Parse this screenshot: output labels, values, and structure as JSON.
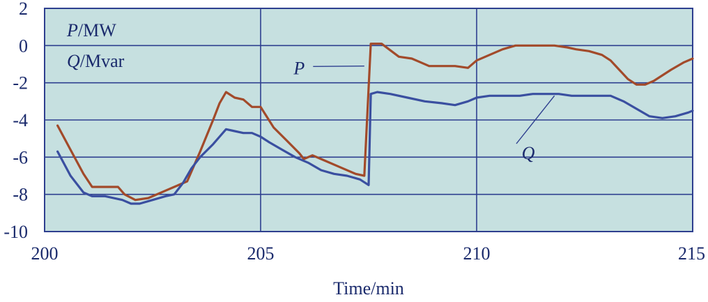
{
  "chart_data": {
    "type": "line",
    "xlabel": "Time/min",
    "ylabel": "",
    "xlim": [
      200,
      215
    ],
    "ylim": [
      -10,
      2
    ],
    "xticks": [
      200,
      205,
      210,
      215
    ],
    "yticks": [
      2,
      0,
      -2,
      -4,
      -6,
      -8,
      -10
    ],
    "grid": true,
    "legend_lines": [
      {
        "italic": "P",
        "unit": "/MW"
      },
      {
        "italic": "Q",
        "unit": "/Mvar"
      }
    ],
    "colors": {
      "plot_bg": "#c6e0e0",
      "grid": "#2e3f8f",
      "axis_text": "#1a2a6c"
    },
    "series": [
      {
        "name": "P",
        "color": "#a24a2a",
        "label_at": [
          206.15,
          -1.2
        ],
        "leader_to": [
          207.4,
          -1.1
        ],
        "x": [
          200.3,
          200.6,
          200.9,
          201.1,
          201.4,
          201.7,
          201.85,
          202.1,
          202.4,
          202.8,
          203.0,
          203.3,
          203.6,
          203.9,
          204.05,
          204.2,
          204.4,
          204.6,
          204.8,
          205.0,
          205.3,
          205.6,
          205.9,
          206.0,
          206.2,
          206.4,
          206.8,
          207.2,
          207.4,
          207.55,
          207.8,
          208.2,
          208.5,
          208.7,
          208.9,
          209.2,
          209.5,
          209.8,
          210.0,
          210.3,
          210.6,
          210.9,
          211.2,
          211.5,
          211.8,
          212.1,
          212.3,
          212.6,
          212.9,
          213.1,
          213.3,
          213.5,
          213.7,
          213.9,
          214.1,
          214.3,
          214.5,
          214.8,
          215.0
        ],
        "y": [
          -4.3,
          -5.6,
          -6.9,
          -7.6,
          -7.6,
          -7.6,
          -8.0,
          -8.3,
          -8.2,
          -7.8,
          -7.6,
          -7.3,
          -5.7,
          -4.0,
          -3.1,
          -2.5,
          -2.8,
          -2.9,
          -3.3,
          -3.3,
          -4.4,
          -5.1,
          -5.8,
          -6.1,
          -5.9,
          -6.1,
          -6.5,
          -6.9,
          -7.0,
          0.1,
          0.1,
          -0.6,
          -0.7,
          -0.9,
          -1.1,
          -1.1,
          -1.1,
          -1.2,
          -0.8,
          -0.5,
          -0.2,
          0.0,
          0.0,
          0.0,
          0.0,
          -0.1,
          -0.2,
          -0.3,
          -0.5,
          -0.8,
          -1.3,
          -1.8,
          -2.1,
          -2.1,
          -1.9,
          -1.6,
          -1.3,
          -0.9,
          -0.7
        ]
      },
      {
        "name": "Q",
        "color": "#3a4fa0",
        "label_at": [
          211.0,
          -5.5
        ],
        "leader_to": [
          211.8,
          -2.7
        ],
        "x": [
          200.3,
          200.6,
          200.9,
          201.1,
          201.4,
          201.8,
          202.0,
          202.2,
          202.5,
          202.8,
          203.0,
          203.2,
          203.4,
          203.6,
          203.9,
          204.05,
          204.2,
          204.4,
          204.6,
          204.8,
          205.0,
          205.2,
          205.5,
          205.8,
          206.1,
          206.4,
          206.7,
          207.0,
          207.3,
          207.5,
          207.55,
          207.7,
          208.0,
          208.4,
          208.8,
          209.2,
          209.5,
          209.8,
          210.0,
          210.3,
          210.6,
          211.0,
          211.3,
          211.6,
          211.9,
          212.2,
          212.5,
          212.8,
          213.1,
          213.4,
          213.7,
          214.0,
          214.3,
          214.6,
          214.9,
          215.0
        ],
        "y": [
          -5.7,
          -7.0,
          -7.9,
          -8.1,
          -8.1,
          -8.3,
          -8.5,
          -8.5,
          -8.3,
          -8.1,
          -8.0,
          -7.4,
          -6.6,
          -6.0,
          -5.3,
          -4.9,
          -4.5,
          -4.6,
          -4.7,
          -4.7,
          -4.9,
          -5.2,
          -5.6,
          -6.0,
          -6.3,
          -6.7,
          -6.9,
          -7.0,
          -7.2,
          -7.5,
          -2.6,
          -2.5,
          -2.6,
          -2.8,
          -3.0,
          -3.1,
          -3.2,
          -3.0,
          -2.8,
          -2.7,
          -2.7,
          -2.7,
          -2.6,
          -2.6,
          -2.6,
          -2.7,
          -2.7,
          -2.7,
          -2.7,
          -3.0,
          -3.4,
          -3.8,
          -3.9,
          -3.8,
          -3.6,
          -3.5
        ]
      }
    ]
  }
}
